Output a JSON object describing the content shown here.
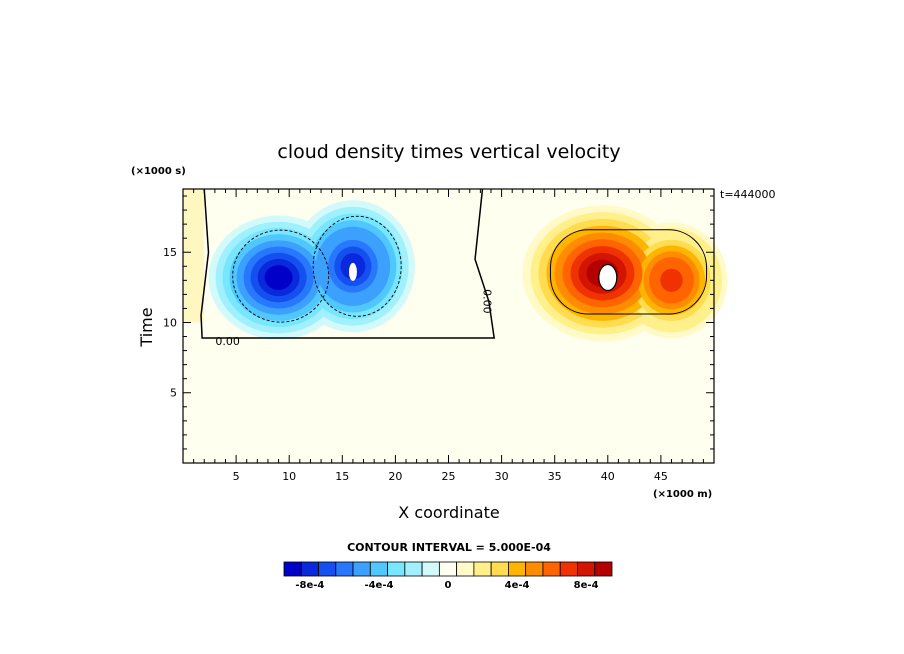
{
  "chart_data": {
    "type": "heatmap",
    "title": "cloud density times vertical velocity",
    "xlabel": "X coordinate",
    "ylabel": "Time",
    "x_units": "(×1000 m)",
    "y_units": "(×1000 s)",
    "annotation": "t=444000",
    "xlim": [
      0,
      50
    ],
    "ylim": [
      0,
      19.5
    ],
    "x_ticks": [
      5,
      10,
      15,
      20,
      25,
      30,
      35,
      40,
      45
    ],
    "y_ticks": [
      5,
      10,
      15
    ],
    "contour_interval": "CONTOUR INTERVAL = 5.000E-04",
    "contour_label": "0.00",
    "colorbar": {
      "colors": [
        "#0000c8",
        "#0a28dc",
        "#1450f0",
        "#2878ff",
        "#3ca0ff",
        "#50c8ff",
        "#78e6ff",
        "#a0f0ff",
        "#d2fafa",
        "#fffff0",
        "#fffac8",
        "#fff08c",
        "#ffdc50",
        "#ffb400",
        "#ff8c00",
        "#ff6400",
        "#f03200",
        "#d21400",
        "#b40000"
      ],
      "tick_labels": [
        "-8e-4",
        "-4e-4",
        "0",
        "4e-4",
        "8e-4"
      ],
      "tick_values": [
        -0.0008,
        -0.0004,
        0,
        0.0004,
        0.0008
      ],
      "min": -0.00095,
      "max": 0.00095
    },
    "features": [
      {
        "type": "negative",
        "x": 9,
        "y": 13.2,
        "peak": -0.0009
      },
      {
        "type": "negative",
        "x": 16,
        "y": 14.0,
        "peak": -0.00085
      },
      {
        "type": "positive",
        "x": 40,
        "y": 13.2,
        "peak": 0.00095
      },
      {
        "type": "positive",
        "x": 46,
        "y": 12.8,
        "peak": 0.0008
      }
    ]
  }
}
